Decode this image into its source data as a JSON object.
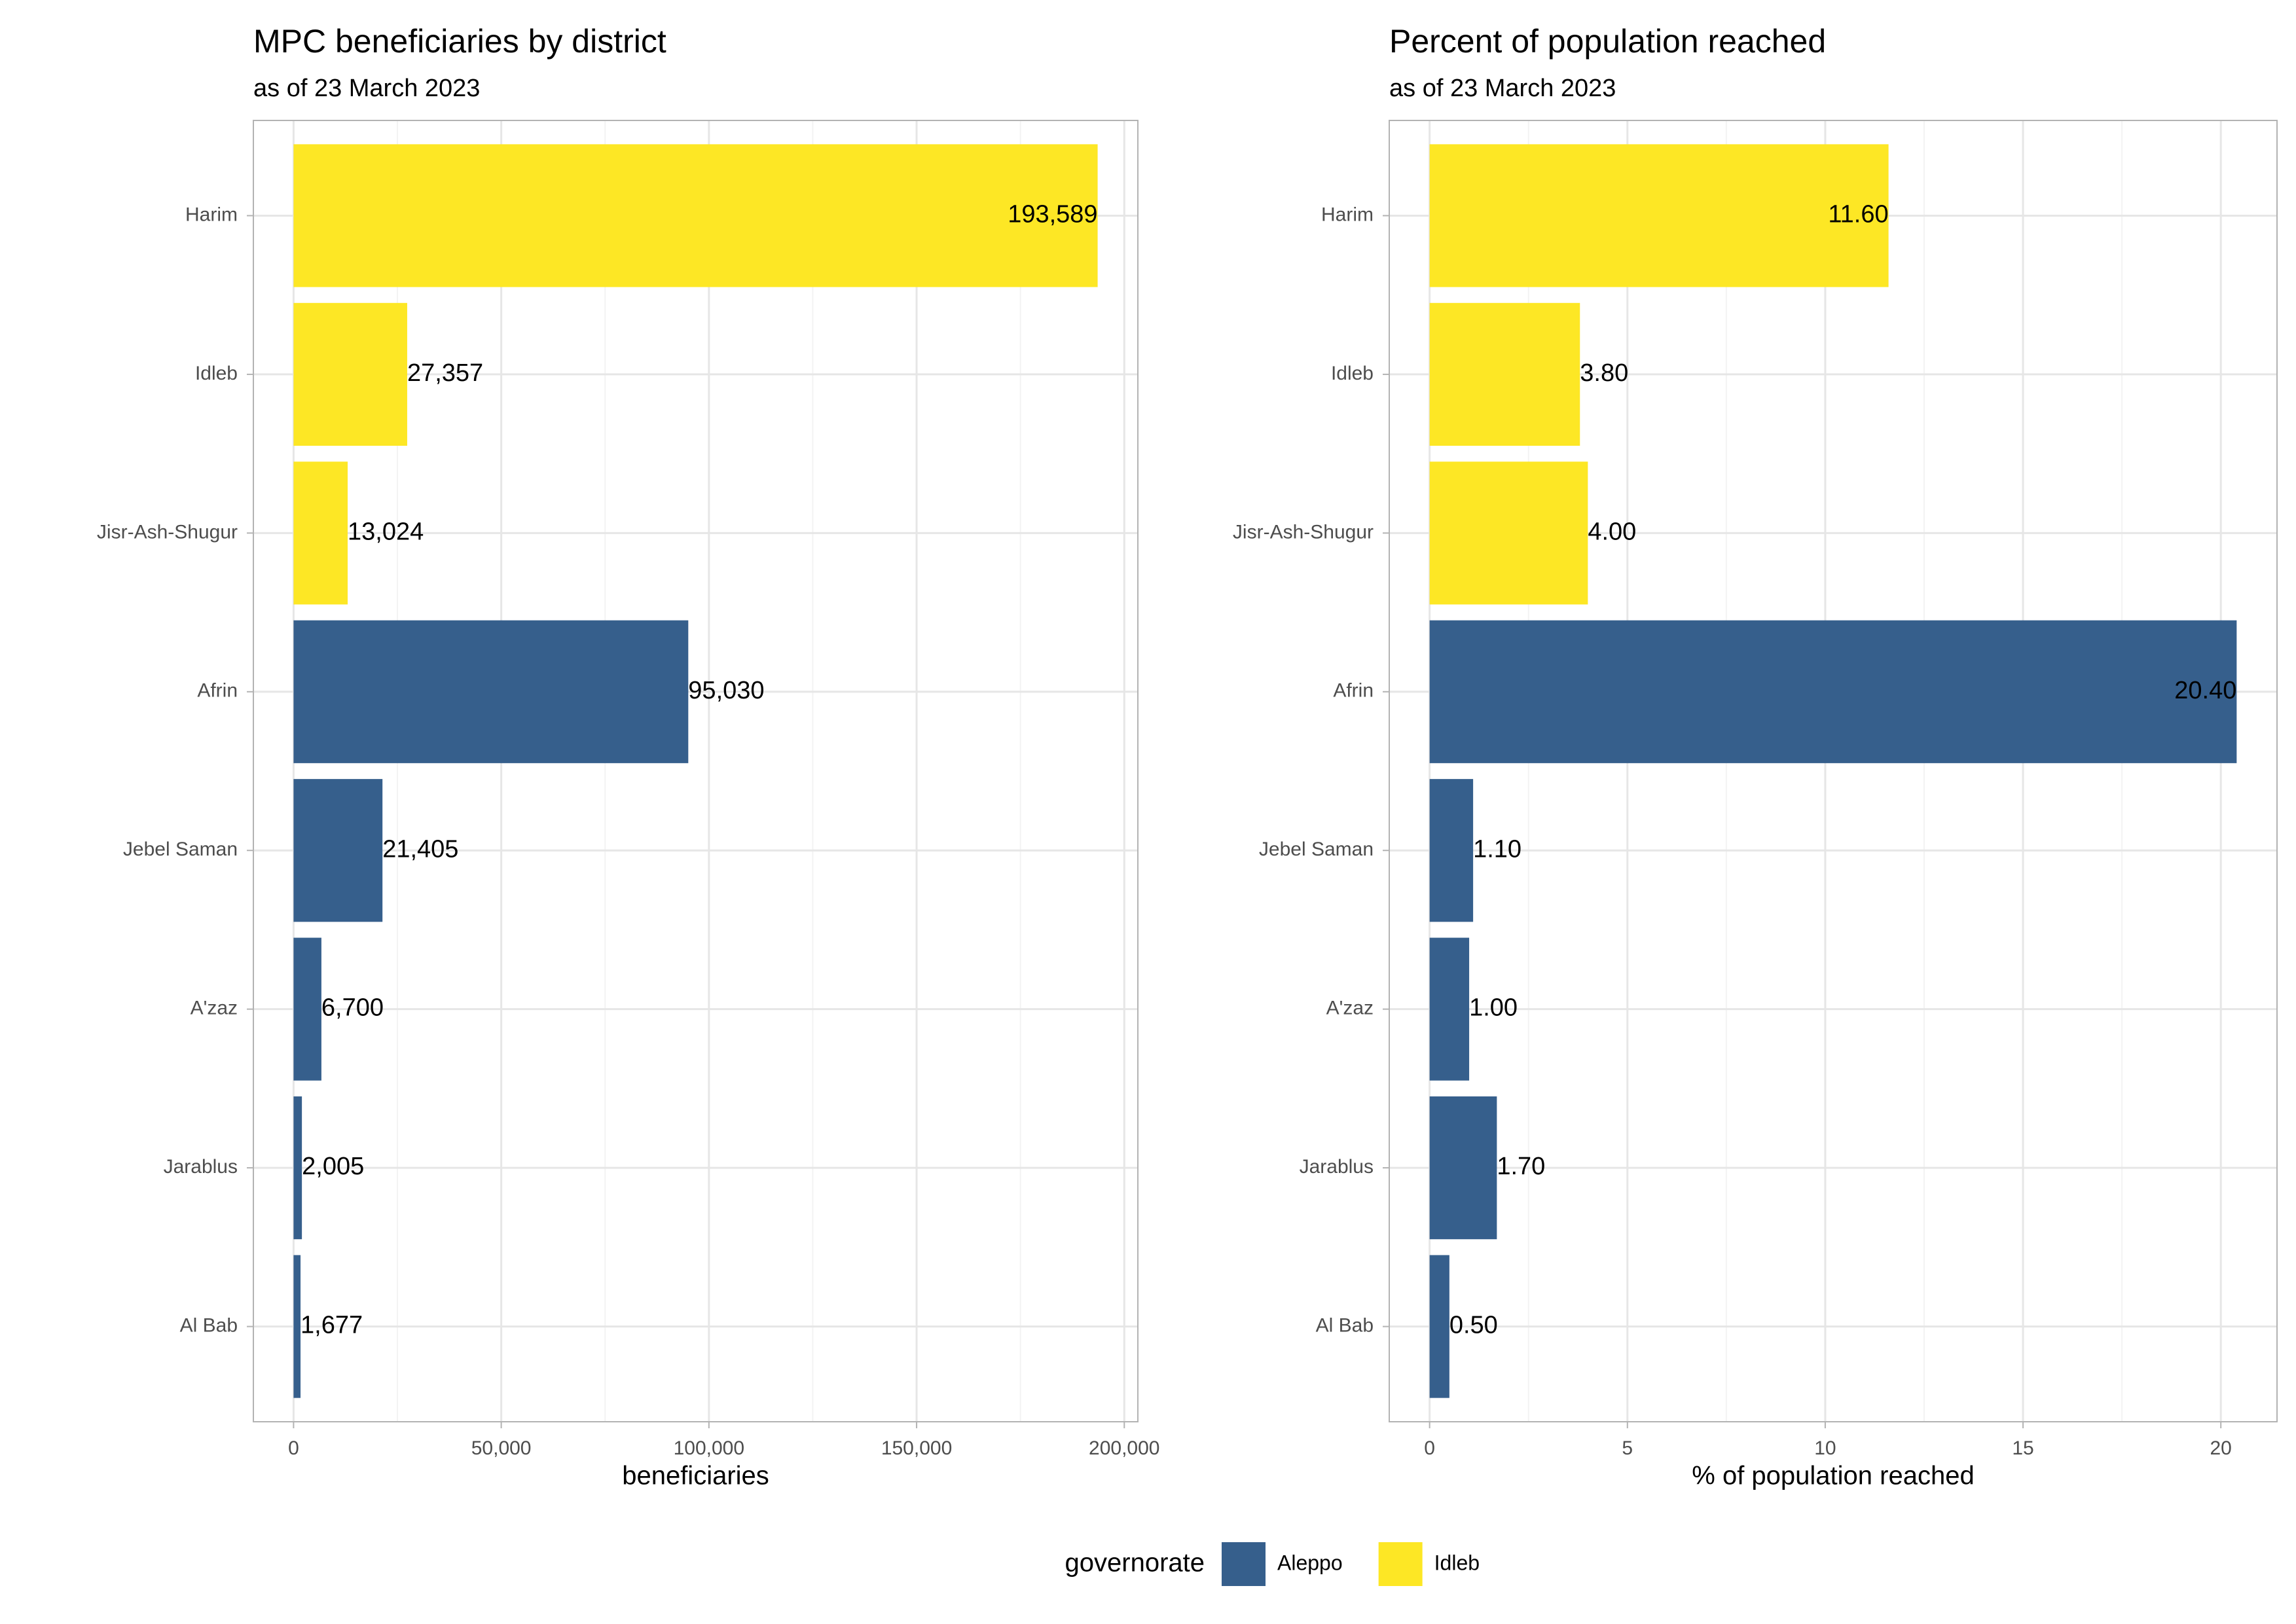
{
  "chart_data": [
    {
      "type": "bar",
      "orientation": "horizontal",
      "title": "MPC beneficiaries by district",
      "subtitle": "as of 23 March 2023",
      "x_label": "beneficiaries",
      "legend_title": "governorate",
      "categories": [
        "Harim",
        "Idleb",
        "Jisr-Ash-Shugur",
        "Afrin",
        "Jebel Saman",
        "A'zaz",
        "Jarablus",
        "Al Bab"
      ],
      "series": [
        {
          "name": "Aleppo",
          "color": "#365f8c",
          "values": [
            null,
            null,
            null,
            95030,
            21405,
            6700,
            2005,
            1677
          ],
          "value_labels": [
            null,
            null,
            null,
            "95,030",
            "21,405",
            "6,700",
            "2,005",
            "1,677"
          ]
        },
        {
          "name": "Idleb",
          "color": "#fde725",
          "values": [
            193589,
            27357,
            13024,
            null,
            null,
            null,
            null,
            null
          ],
          "value_labels": [
            "193,589",
            "27,357",
            "13,024",
            null,
            null,
            null,
            null,
            null
          ]
        }
      ],
      "xlim": [
        -9679,
        203268
      ],
      "xticks": [
        0,
        {
          "value": 50000,
          "label": "50,000"
        },
        {
          "value": 100000,
          "label": "100,000"
        },
        {
          "value": 150000,
          "label": "150,000"
        },
        {
          "value": 200000,
          "label": "200,000"
        }
      ],
      "xminor": [
        25000,
        75000,
        125000,
        175000
      ],
      "grid": true
    },
    {
      "type": "bar",
      "orientation": "horizontal",
      "title": "Percent of population reached",
      "subtitle": "as of 23 March 2023",
      "x_label": "% of population reached",
      "categories": [
        "Harim",
        "Idleb",
        "Jisr-Ash-Shugur",
        "Afrin",
        "Jebel Saman",
        "A'zaz",
        "Jarablus",
        "Al Bab"
      ],
      "series": [
        {
          "name": "Aleppo",
          "color": "#365f8c",
          "values": [
            null,
            null,
            null,
            20.4,
            1.1,
            1.0,
            1.7,
            0.5
          ],
          "value_labels": [
            null,
            null,
            null,
            "20.40",
            "1.10",
            "1.00",
            "1.70",
            "0.50"
          ]
        },
        {
          "name": "Idleb",
          "color": "#fde725",
          "values": [
            11.6,
            3.8,
            4.0,
            null,
            null,
            null,
            null,
            null
          ],
          "value_labels": [
            "11.60",
            "3.80",
            "4.00",
            null,
            null,
            null,
            null,
            null
          ]
        }
      ],
      "xlim": [
        -1.02,
        21.42
      ],
      "xticks": [
        0,
        5,
        10,
        15,
        20
      ],
      "xminor": [
        2.5,
        7.5,
        12.5,
        17.5
      ],
      "grid": true
    }
  ]
}
